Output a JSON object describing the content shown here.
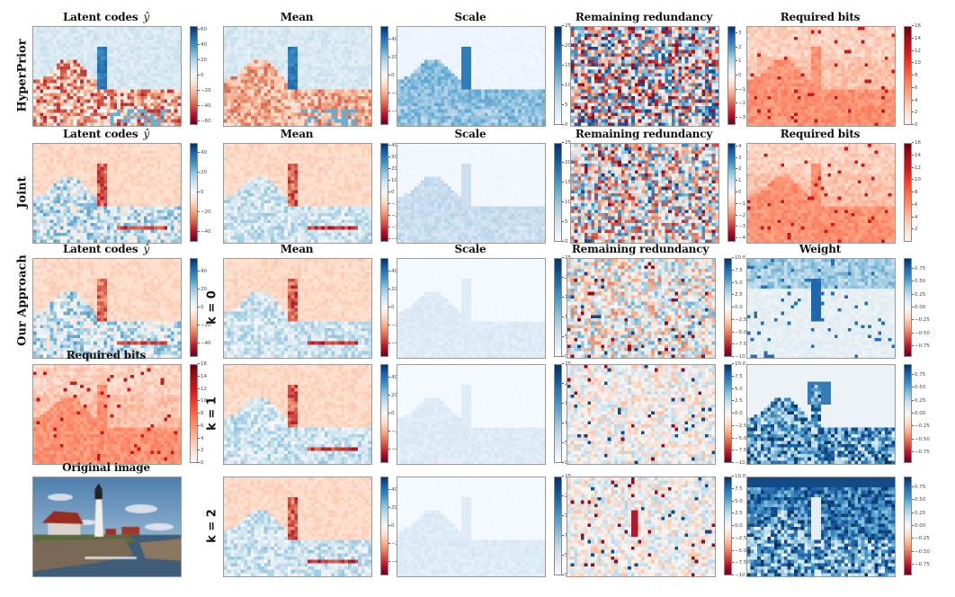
{
  "figure": {
    "rows": [
      {
        "label": "HyperPrior",
        "panels": [
          {
            "title": "Latent codes",
            "symbol": "ŷ",
            "cmap": "RdBu",
            "ticks": [
              "60",
              "40",
              "20",
              "0",
              "−20",
              "−40",
              "−60"
            ],
            "range": [
              -65,
              65
            ]
          },
          {
            "title": "Mean",
            "cmap": "RdBu",
            "ticks": [
              "40",
              "20",
              "0",
              "−20",
              "−40"
            ],
            "range": [
              -55,
              55
            ]
          },
          {
            "title": "Scale",
            "cmap": "Blues",
            "ticks": [
              "25",
              "20",
              "15",
              "10",
              "5",
              "0"
            ],
            "range": [
              0,
              25
            ]
          },
          {
            "title": "Remaining redundancy",
            "cmap": "RdBu",
            "ticks": [
              "3",
              "2",
              "1",
              "0",
              "−1",
              "−2",
              "−3"
            ],
            "range": [
              -3.5,
              3.5
            ]
          },
          {
            "title": "Required bits",
            "cmap": "Reds",
            "ticks": [
              "16",
              "14",
              "12",
              "10",
              "8",
              "6",
              "4",
              "2",
              "0"
            ],
            "range": [
              0,
              16
            ]
          }
        ]
      },
      {
        "label": "Joint",
        "panels": [
          {
            "title": "Latent codes",
            "symbol": "ŷ",
            "cmap": "RdBu",
            "ticks": [
              "40",
              "20",
              "0",
              "−20",
              "−40"
            ],
            "range": [
              -50,
              50
            ]
          },
          {
            "title": "Mean",
            "cmap": "RdBu",
            "ticks": [
              "40",
              "30",
              "20",
              "10",
              "0",
              "−10",
              "−20",
              "−30",
              "−40"
            ],
            "range": [
              -42,
              42
            ]
          },
          {
            "title": "Scale",
            "cmap": "Blues",
            "ticks": [
              "25",
              "20",
              "15",
              "10",
              "5",
              "0"
            ],
            "range": [
              0,
              25
            ]
          },
          {
            "title": "Remaining redundancy",
            "cmap": "RdBu",
            "ticks": [
              "4",
              "3",
              "2",
              "1",
              "0",
              "−1",
              "−2",
              "−3",
              "−4"
            ],
            "range": [
              -4.3,
              4.3
            ]
          },
          {
            "title": "Required bits",
            "cmap": "Reds",
            "ticks": [
              "16",
              "14",
              "12",
              "10",
              "8",
              "6",
              "4",
              "2"
            ],
            "range": [
              0,
              16
            ]
          }
        ]
      },
      {
        "label": "Our Approach",
        "k_label": "k = 0",
        "panels": [
          {
            "title": "Latent codes",
            "symbol": "ŷ",
            "cmap": "RdBu",
            "ticks": [
              "40",
              "20",
              "0",
              "−20",
              "−40"
            ],
            "range": [
              -55,
              55
            ]
          },
          {
            "title": "Mean",
            "cmap": "RdBu",
            "ticks": [
              "40",
              "20",
              "0",
              "−20",
              "−40"
            ],
            "range": [
              -55,
              55
            ]
          },
          {
            "title": "Scale",
            "cmap": "Blues",
            "ticks": [
              "25",
              "20",
              "15",
              "10",
              "5",
              "0"
            ],
            "range": [
              0,
              25
            ]
          },
          {
            "title": "Remaining redundancy",
            "cmap": "RdBu",
            "ticks": [
              "10.0",
              "7.5",
              "5.0",
              "2.5",
              "0.0",
              "−2.5",
              "−5.0",
              "−7.5",
              "−10.0"
            ],
            "range": [
              -10,
              10
            ]
          },
          {
            "title": "Weight",
            "cmap": "RdBu",
            "ticks": [
              "0.75",
              "0.50",
              "0.25",
              "0.00",
              "−0.25",
              "−0.50",
              "−0.75"
            ],
            "range": [
              -0.95,
              0.95
            ]
          }
        ]
      },
      {
        "k_label": "k = 1",
        "panels": [
          {
            "title": "Required bits",
            "cmap": "Reds",
            "ticks": [
              "16",
              "14",
              "12",
              "10",
              "8",
              "6",
              "4",
              "2",
              "0"
            ],
            "range": [
              0,
              16
            ]
          },
          {
            "title": "",
            "cmap": "RdBu",
            "ticks": [
              "40",
              "20",
              "0",
              "−20",
              "−40"
            ],
            "range": [
              -55,
              55
            ]
          },
          {
            "title": "",
            "cmap": "Blues",
            "ticks": [
              "25",
              "20",
              "15",
              "10",
              "5",
              "0"
            ],
            "range": [
              0,
              25
            ]
          },
          {
            "title": "",
            "cmap": "RdBu",
            "ticks": [
              "10.0",
              "7.5",
              "5.0",
              "2.5",
              "0.0",
              "−2.5",
              "−5.0",
              "−7.5",
              "−10.0"
            ],
            "range": [
              -10,
              10
            ]
          },
          {
            "title": "",
            "cmap": "RdBu",
            "ticks": [
              "0.75",
              "0.50",
              "0.25",
              "0.00",
              "−0.25",
              "−0.50",
              "−0.75"
            ],
            "range": [
              -0.95,
              0.95
            ]
          }
        ]
      },
      {
        "k_label": "k = 2",
        "panels": [
          {
            "title": "Original image",
            "cmap": "photo"
          },
          {
            "title": "",
            "cmap": "RdBu",
            "ticks": [
              "40",
              "20",
              "0",
              "−20",
              "−40"
            ],
            "range": [
              -55,
              55
            ]
          },
          {
            "title": "",
            "cmap": "Blues",
            "ticks": [
              "25",
              "20",
              "15",
              "10",
              "5",
              "0"
            ],
            "range": [
              0,
              25
            ]
          },
          {
            "title": "",
            "cmap": "RdBu",
            "ticks": [
              "10.0",
              "7.5",
              "5.0",
              "2.5",
              "0.0",
              "−2.5",
              "−5.0",
              "−7.5",
              "−10.0"
            ],
            "range": [
              -10,
              10
            ]
          },
          {
            "title": "",
            "cmap": "RdBu",
            "ticks": [
              "0.75",
              "0.50",
              "0.25",
              "0.00",
              "−0.25",
              "−0.50",
              "−0.75"
            ],
            "range": [
              -0.95,
              0.95
            ]
          }
        ]
      }
    ],
    "colors": {
      "rdbu_neg": "#67001f",
      "rdbu_mid": "#f7f7f7",
      "rdbu_pos": "#053061",
      "blues_max": "#08306b",
      "reds_max": "#67000d"
    }
  }
}
